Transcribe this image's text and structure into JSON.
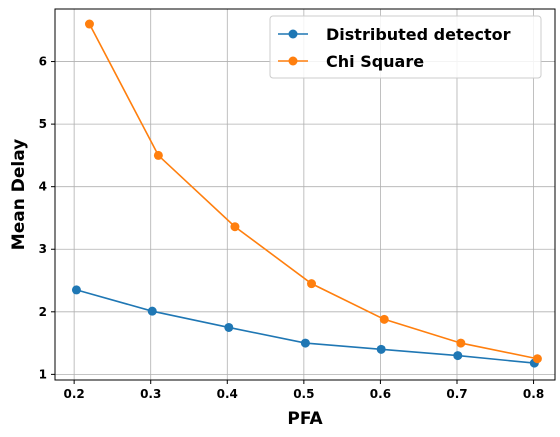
{
  "chart_data": {
    "type": "line",
    "title": "",
    "xlabel": "PFA",
    "ylabel": "Mean Delay",
    "xlim": [
      0.175,
      0.828
    ],
    "ylim": [
      0.91,
      6.84
    ],
    "grid": true,
    "legend_position": "top-right",
    "x_ticks": [
      "0.2",
      "0.3",
      "0.4",
      "0.5",
      "0.6",
      "0.7",
      "0.8"
    ],
    "y_ticks": [
      "1",
      "2",
      "3",
      "4",
      "5",
      "6"
    ],
    "series": [
      {
        "name": "Distributed detector",
        "color": "#1f77b4",
        "x": [
          0.203,
          0.302,
          0.402,
          0.502,
          0.601,
          0.701,
          0.801
        ],
        "y": [
          2.35,
          2.01,
          1.75,
          1.5,
          1.4,
          1.3,
          1.18
        ]
      },
      {
        "name": "Chi Square",
        "color": "#ff7f0e",
        "x": [
          0.22,
          0.31,
          0.41,
          0.51,
          0.605,
          0.705,
          0.805
        ],
        "y": [
          6.6,
          4.5,
          3.36,
          2.45,
          1.88,
          1.5,
          1.25
        ]
      }
    ]
  }
}
